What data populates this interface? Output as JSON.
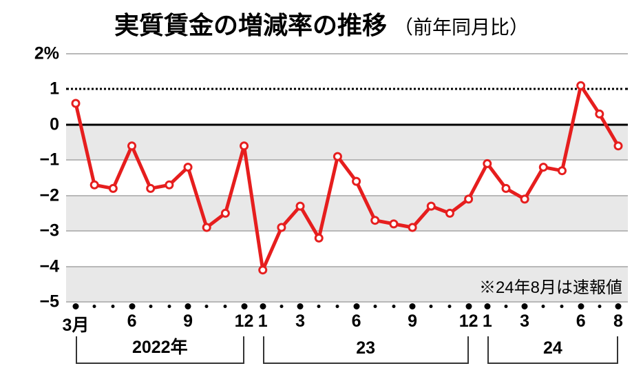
{
  "title": {
    "main": "実質賃金の増減率の推移",
    "sub": "（前年同月比）",
    "fontsize_main": 36,
    "fontsize_sub": 28,
    "color": "#000000"
  },
  "chart": {
    "type": "line",
    "background_color": "#ffffff",
    "shade_color": "#e8e8e8",
    "ylim": [
      -5,
      2
    ],
    "ytick_step": 1,
    "y_ticks": [
      {
        "v": 2,
        "label": "2%"
      },
      {
        "v": 1,
        "label": "1"
      },
      {
        "v": 0,
        "label": "0"
      },
      {
        "v": -1,
        "label": "−1"
      },
      {
        "v": -2,
        "label": "−2"
      },
      {
        "v": -3,
        "label": "−3"
      },
      {
        "v": -4,
        "label": "−4"
      },
      {
        "v": -5,
        "label": "−5"
      }
    ],
    "grid_color": "#b8b8b8",
    "zero_line_color": "#000000",
    "dotted_line_color": "#000000",
    "dotted_at_y": 1,
    "line_color": "#e61e1e",
    "line_width": 5,
    "marker_fill": "#ffffff",
    "marker_stroke": "#e61e1e",
    "marker_r": 5,
    "marker_stroke_w": 3,
    "points": [
      {
        "i": 0,
        "m": "2022-03",
        "y": 0.6
      },
      {
        "i": 1,
        "m": "2022-04",
        "y": -1.7
      },
      {
        "i": 2,
        "m": "2022-05",
        "y": -1.8
      },
      {
        "i": 3,
        "m": "2022-06",
        "y": -0.6
      },
      {
        "i": 4,
        "m": "2022-07",
        "y": -1.8
      },
      {
        "i": 5,
        "m": "2022-08",
        "y": -1.7
      },
      {
        "i": 6,
        "m": "2022-09",
        "y": -1.2
      },
      {
        "i": 7,
        "m": "2022-10",
        "y": -2.9
      },
      {
        "i": 8,
        "m": "2022-11",
        "y": -2.5
      },
      {
        "i": 9,
        "m": "2022-12",
        "y": -0.6
      },
      {
        "i": 10,
        "m": "2023-01",
        "y": -4.1
      },
      {
        "i": 11,
        "m": "2023-02",
        "y": -2.9
      },
      {
        "i": 12,
        "m": "2023-03",
        "y": -2.3
      },
      {
        "i": 13,
        "m": "2023-04",
        "y": -3.2
      },
      {
        "i": 14,
        "m": "2023-05",
        "y": -0.9
      },
      {
        "i": 15,
        "m": "2023-06",
        "y": -1.6
      },
      {
        "i": 16,
        "m": "2023-07",
        "y": -2.7
      },
      {
        "i": 17,
        "m": "2023-08",
        "y": -2.8
      },
      {
        "i": 18,
        "m": "2023-09",
        "y": -2.9
      },
      {
        "i": 19,
        "m": "2023-10",
        "y": -2.3
      },
      {
        "i": 20,
        "m": "2023-11",
        "y": -2.5
      },
      {
        "i": 21,
        "m": "2023-12",
        "y": -2.1
      },
      {
        "i": 22,
        "m": "2024-01",
        "y": -1.1
      },
      {
        "i": 23,
        "m": "2024-02",
        "y": -1.8
      },
      {
        "i": 24,
        "m": "2024-03",
        "y": -2.1
      },
      {
        "i": 25,
        "m": "2024-04",
        "y": -1.2
      },
      {
        "i": 26,
        "m": "2024-05",
        "y": -1.3
      },
      {
        "i": 27,
        "m": "2024-06",
        "y": 1.1
      },
      {
        "i": 28,
        "m": "2024-07",
        "y": 0.3
      },
      {
        "i": 29,
        "m": "2024-08",
        "y": -0.6
      }
    ],
    "x_ticks": [
      {
        "i": 0,
        "label": "3月",
        "major": true
      },
      {
        "i": 1,
        "major": false
      },
      {
        "i": 2,
        "major": false
      },
      {
        "i": 3,
        "label": "6",
        "major": true
      },
      {
        "i": 4,
        "major": false
      },
      {
        "i": 5,
        "major": false
      },
      {
        "i": 6,
        "label": "9",
        "major": true
      },
      {
        "i": 7,
        "major": false
      },
      {
        "i": 8,
        "major": false
      },
      {
        "i": 9,
        "label": "12",
        "major": true
      },
      {
        "i": 10,
        "label": "1",
        "major": true
      },
      {
        "i": 11,
        "major": false
      },
      {
        "i": 12,
        "label": "3",
        "major": true
      },
      {
        "i": 13,
        "major": false
      },
      {
        "i": 14,
        "major": false
      },
      {
        "i": 15,
        "label": "6",
        "major": true
      },
      {
        "i": 16,
        "major": false
      },
      {
        "i": 17,
        "major": false
      },
      {
        "i": 18,
        "label": "9",
        "major": true
      },
      {
        "i": 19,
        "major": false
      },
      {
        "i": 20,
        "major": false
      },
      {
        "i": 21,
        "label": "12",
        "major": true
      },
      {
        "i": 22,
        "label": "1",
        "major": true
      },
      {
        "i": 23,
        "major": false
      },
      {
        "i": 24,
        "label": "3",
        "major": true
      },
      {
        "i": 25,
        "major": false
      },
      {
        "i": 26,
        "major": false
      },
      {
        "i": 27,
        "label": "6",
        "major": true
      },
      {
        "i": 28,
        "major": false
      },
      {
        "i": 29,
        "label": "8",
        "major": true
      }
    ],
    "year_groups": [
      {
        "from_i": 0,
        "to_i": 9,
        "label": "2022年"
      },
      {
        "from_i": 10,
        "to_i": 21,
        "label": "23"
      },
      {
        "from_i": 22,
        "to_i": 29,
        "label": "24"
      }
    ],
    "note": {
      "text": "※24年8月は速報値",
      "fontsize": 24,
      "color": "#000000"
    }
  }
}
